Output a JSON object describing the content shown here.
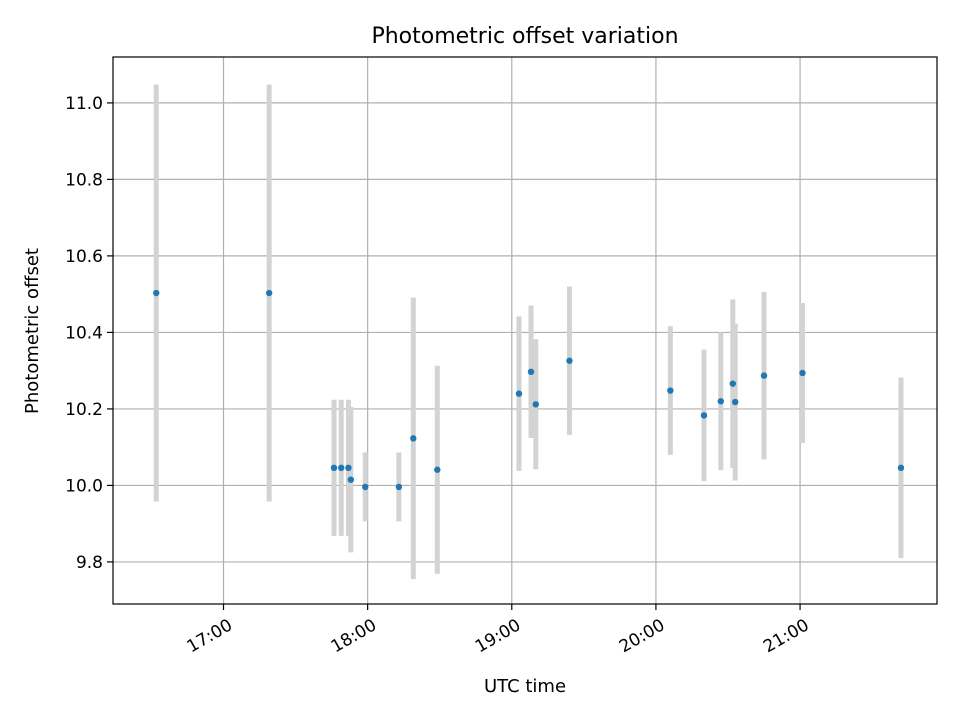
{
  "chart_data": {
    "type": "scatter",
    "title": "Photometric offset variation",
    "xlabel": "UTC time",
    "ylabel": "Photometric offset",
    "x_tick_labels": [
      "17:00",
      "18:00",
      "19:00",
      "20:00",
      "21:00"
    ],
    "x_ticks": [
      "17:00",
      "18:00",
      "19:00",
      "20:00",
      "21:00"
    ],
    "y_ticks": [
      9.8,
      10.0,
      10.2,
      10.4,
      10.6,
      10.8,
      11.0
    ],
    "y_tick_labels": [
      "9.8",
      "10.0",
      "10.2",
      "10.4",
      "10.6",
      "10.8",
      "11.0"
    ],
    "xlim": [
      "16:14",
      "21:57"
    ],
    "ylim": [
      9.69,
      11.12
    ],
    "grid": true,
    "marker_color": "#1f77b4",
    "errorbar_color": "#d3d3d3",
    "points": [
      {
        "x": "16:32",
        "y": 10.503,
        "err": 0.545
      },
      {
        "x": "17:19",
        "y": 10.503,
        "err": 0.545
      },
      {
        "x": "17:46",
        "y": 10.046,
        "err": 0.178
      },
      {
        "x": "17:49",
        "y": 10.046,
        "err": 0.178
      },
      {
        "x": "17:52",
        "y": 10.046,
        "err": 0.178
      },
      {
        "x": "17:53",
        "y": 10.015,
        "err": 0.19
      },
      {
        "x": "17:59",
        "y": 9.996,
        "err": 0.09
      },
      {
        "x": "18:13",
        "y": 9.996,
        "err": 0.09
      },
      {
        "x": "18:19",
        "y": 10.123,
        "err": 0.368
      },
      {
        "x": "18:29",
        "y": 10.041,
        "err": 0.272
      },
      {
        "x": "19:03",
        "y": 10.24,
        "err": 0.202
      },
      {
        "x": "19:08",
        "y": 10.297,
        "err": 0.173
      },
      {
        "x": "19:10",
        "y": 10.212,
        "err": 0.17
      },
      {
        "x": "19:24",
        "y": 10.326,
        "err": 0.194
      },
      {
        "x": "20:06",
        "y": 10.248,
        "err": 0.168
      },
      {
        "x": "20:20",
        "y": 10.183,
        "err": 0.172
      },
      {
        "x": "20:27",
        "y": 10.22,
        "err": 0.18
      },
      {
        "x": "20:32",
        "y": 10.266,
        "err": 0.22
      },
      {
        "x": "20:33",
        "y": 10.218,
        "err": 0.205
      },
      {
        "x": "20:45",
        "y": 10.287,
        "err": 0.219
      },
      {
        "x": "21:01",
        "y": 10.294,
        "err": 0.183
      },
      {
        "x": "21:42",
        "y": 10.046,
        "err": 0.236
      }
    ]
  }
}
